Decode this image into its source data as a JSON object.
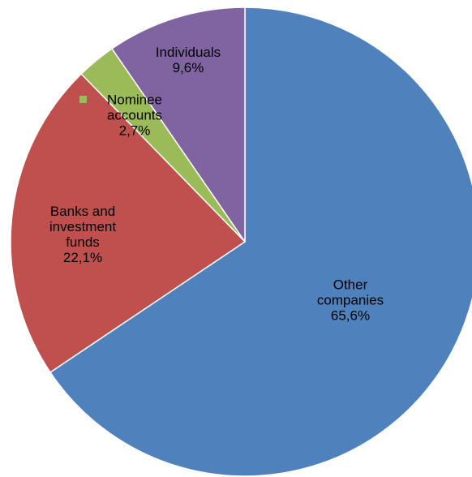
{
  "chart_data": {
    "type": "pie",
    "title": "",
    "start_angle_deg": 0,
    "direction": "clockwise",
    "slices": [
      {
        "label_lines": [
          "Other",
          "companies"
        ],
        "value_label": "65,6%",
        "value": 65.6,
        "color": "#4F81BD"
      },
      {
        "label_lines": [
          "Banks and",
          "investment",
          "funds"
        ],
        "value_label": "22,1%",
        "value": 22.1,
        "color": "#C0504D"
      },
      {
        "label_lines": [
          "Nominee",
          "accounts"
        ],
        "value_label": "2,7%",
        "value": 2.7,
        "color": "#9BBB59"
      },
      {
        "label_lines": [
          "Individuals"
        ],
        "value_label": "9,6%",
        "value": 9.6,
        "color": "#8064A2"
      }
    ],
    "legend_marker_slice": 2
  }
}
